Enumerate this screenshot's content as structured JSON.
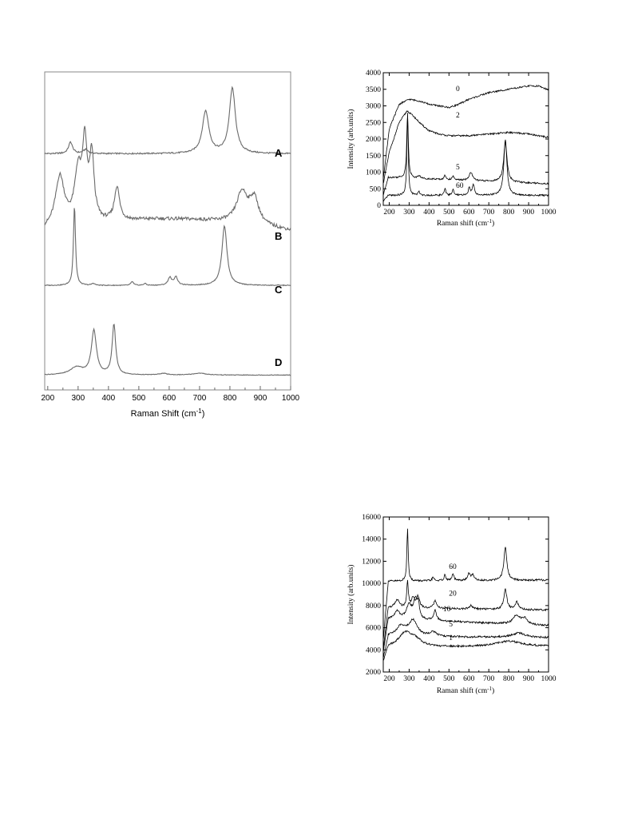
{
  "chart_data": [
    {
      "type": "line",
      "xlabel": "Raman Shift  (cm",
      "xlabel_sup": "-1",
      "xlabel_end": ")",
      "ylabel": "",
      "xlim": [
        190,
        1000
      ],
      "x_ticks": [
        200,
        300,
        400,
        500,
        600,
        700,
        800,
        900,
        1000
      ],
      "grid": false,
      "series": [
        {
          "name": "A",
          "baseline": 0.16,
          "slope": 0.0,
          "peaks": [
            [
              275,
              0.17,
              8
            ],
            [
              325,
              0.06,
              10
            ],
            [
              720,
              0.62,
              13
            ],
            [
              808,
              0.96,
              12
            ]
          ]
        },
        {
          "name": "B",
          "baseline": 0.45,
          "slope": 0.2,
          "peaks": [
            [
              240,
              0.9,
              18
            ],
            [
              300,
              0.9,
              14
            ],
            [
              322,
              1.3,
              9
            ],
            [
              345,
              1.15,
              9
            ],
            [
              428,
              0.6,
              10
            ],
            [
              840,
              0.55,
              22
            ],
            [
              880,
              0.45,
              18
            ]
          ]
        },
        {
          "name": "C",
          "baseline": 0.14,
          "slope": 0.0,
          "peaks": [
            [
              288,
              2.1,
              4
            ],
            [
              350,
              0.05,
              6
            ],
            [
              478,
              0.1,
              5
            ],
            [
              520,
              0.05,
              5
            ],
            [
              602,
              0.2,
              7
            ],
            [
              622,
              0.22,
              7
            ],
            [
              782,
              1.55,
              10
            ]
          ]
        },
        {
          "name": "D",
          "baseline": 0.12,
          "slope": 0.0,
          "peaks": [
            [
              295,
              0.25,
              25
            ],
            [
              352,
              1.45,
              10
            ],
            [
              418,
              1.65,
              7
            ],
            [
              580,
              0.05,
              15
            ],
            [
              700,
              0.06,
              25
            ]
          ]
        }
      ]
    },
    {
      "type": "line",
      "xlabel": "Raman shift (cm",
      "xlabel_sup": "-1",
      "xlabel_end": ")",
      "ylabel": "Intensity (arb.units)",
      "xlim": [
        170,
        1000
      ],
      "ylim": [
        0,
        4000
      ],
      "x_ticks": [
        200,
        300,
        400,
        500,
        600,
        700,
        800,
        900,
        1000
      ],
      "y_ticks": [
        0,
        500,
        1000,
        1500,
        2000,
        2500,
        3000,
        3500,
        4000
      ],
      "grid": false,
      "series": [
        {
          "name": "0",
          "label_pos": [
            535,
            3450
          ],
          "points": [
            [
              170,
              800
            ],
            [
              200,
              2300
            ],
            [
              250,
              3050
            ],
            [
              300,
              3200
            ],
            [
              350,
              3150
            ],
            [
              400,
              3050
            ],
            [
              450,
              3000
            ],
            [
              500,
              2950
            ],
            [
              550,
              3050
            ],
            [
              600,
              3200
            ],
            [
              650,
              3300
            ],
            [
              700,
              3400
            ],
            [
              750,
              3450
            ],
            [
              800,
              3500
            ],
            [
              850,
              3550
            ],
            [
              900,
              3600
            ],
            [
              950,
              3600
            ],
            [
              1000,
              3480
            ]
          ]
        },
        {
          "name": "2",
          "label_pos": [
            535,
            2650
          ],
          "points": [
            [
              170,
              650
            ],
            [
              200,
              1600
            ],
            [
              250,
              2500
            ],
            [
              290,
              2850
            ],
            [
              320,
              2700
            ],
            [
              360,
              2450
            ],
            [
              400,
              2250
            ],
            [
              450,
              2150
            ],
            [
              500,
              2100
            ],
            [
              600,
              2100
            ],
            [
              700,
              2150
            ],
            [
              800,
              2200
            ],
            [
              900,
              2150
            ],
            [
              1000,
              2050
            ]
          ]
        },
        {
          "name": "5",
          "label_pos": [
            535,
            1080
          ],
          "base": 850,
          "end": 650,
          "peaks": [
            [
              292,
              1900,
              5
            ],
            [
              350,
              80,
              8
            ],
            [
              480,
              120,
              6
            ],
            [
              520,
              100,
              6
            ],
            [
              610,
              250,
              10
            ],
            [
              783,
              1200,
              10
            ]
          ]
        },
        {
          "name": "60",
          "label_pos": [
            535,
            530
          ],
          "base": 300,
          "end": 300,
          "peaks": [
            [
              292,
              2500,
              4
            ],
            [
              350,
              100,
              6
            ],
            [
              480,
              200,
              5
            ],
            [
              520,
              180,
              5
            ],
            [
              602,
              220,
              6
            ],
            [
              622,
              300,
              7
            ],
            [
              783,
              1700,
              9
            ]
          ]
        }
      ]
    },
    {
      "type": "line",
      "xlabel": "Raman shift (cm",
      "xlabel_sup": "-1",
      "xlabel_end": ")",
      "ylabel": "Intensity (arb.units)",
      "xlim": [
        170,
        1000
      ],
      "ylim": [
        2000,
        16000
      ],
      "x_ticks": [
        200,
        300,
        400,
        500,
        600,
        700,
        800,
        900,
        1000
      ],
      "y_ticks": [
        2000,
        4000,
        6000,
        8000,
        10000,
        12000,
        14000,
        16000
      ],
      "grid": false,
      "series": [
        {
          "name": "60",
          "label_pos": [
            500,
            11300
          ],
          "base": 10200,
          "end": 10300,
          "peaks": [
            [
              292,
              4800,
              4
            ],
            [
              420,
              300,
              6
            ],
            [
              480,
              500,
              6
            ],
            [
              520,
              600,
              6
            ],
            [
              600,
              600,
              8
            ],
            [
              620,
              500,
              8
            ],
            [
              783,
              3000,
              9
            ]
          ]
        },
        {
          "name": "20",
          "label_pos": [
            500,
            8900
          ],
          "base": 7800,
          "end": 7600,
          "peaks": [
            [
              240,
              700,
              14
            ],
            [
              292,
              2300,
              5
            ],
            [
              320,
              900,
              10
            ],
            [
              345,
              1000,
              9
            ],
            [
              430,
              700,
              8
            ],
            [
              610,
              300,
              10
            ],
            [
              783,
              1800,
              9
            ],
            [
              840,
              700,
              9
            ]
          ]
        },
        {
          "name": "10",
          "label_pos": [
            470,
            7500
          ],
          "base": 6800,
          "end": 6200,
          "peaks": [
            [
              240,
              700,
              16
            ],
            [
              300,
              1300,
              16
            ],
            [
              330,
              1500,
              10
            ],
            [
              345,
              1300,
              9
            ],
            [
              430,
              900,
              9
            ],
            [
              840,
              800,
              20
            ],
            [
              880,
              500,
              16
            ]
          ]
        },
        {
          "name": "5",
          "label_pos": [
            500,
            6100
          ],
          "base": 5200,
          "end": 5100,
          "peaks": [
            [
              260,
              900,
              30
            ],
            [
              320,
              1400,
              25
            ],
            [
              420,
              400,
              20
            ],
            [
              850,
              400,
              40
            ]
          ]
        },
        {
          "name": "1",
          "label_pos": [
            500,
            4900
          ],
          "base": 4200,
          "end": 4300,
          "peaks": [
            [
              280,
              1200,
              40
            ],
            [
              330,
              600,
              40
            ],
            [
              800,
              500,
              80
            ]
          ]
        }
      ]
    }
  ]
}
